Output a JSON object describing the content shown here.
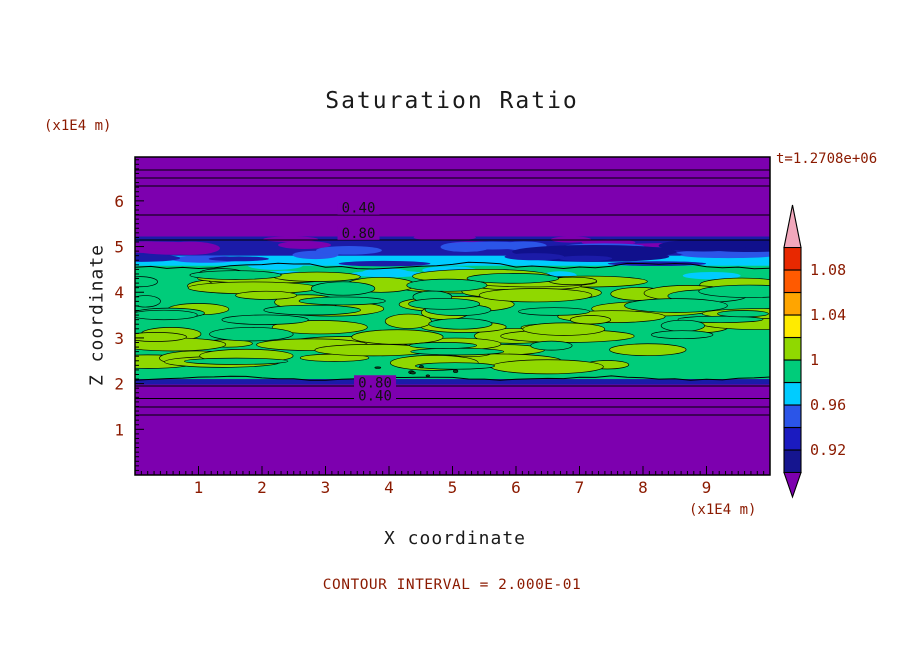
{
  "page": {
    "background": "#FFFFFF"
  },
  "chart_data": {
    "type": "heatmap",
    "title": "Saturation Ratio",
    "xlabel": "X coordinate",
    "ylabel": "Z coordinate",
    "x_axis_unit": "(x1E4 m)",
    "y_axis_unit": "(x1E4 m)",
    "time_label": "t=1.2708e+06",
    "footnote": "CONTOUR INTERVAL = 2.000E-01",
    "xlim": [
      0,
      10
    ],
    "zlim": [
      0,
      6.96
    ],
    "x_ticks": [
      1,
      2,
      3,
      4,
      5,
      6,
      7,
      8,
      9
    ],
    "z_ticks": [
      1,
      2,
      3,
      4,
      5,
      6
    ],
    "colors": {
      "label_accent": "#8B1A00",
      "title_text": "#1A1A1A",
      "contour_line": "#000000",
      "background_field": "#7D00AF"
    },
    "background_color": "#7D00AF",
    "bands": [
      {
        "name": "navy-band",
        "z0": 4.7,
        "z1": 5.22,
        "color": "#1B1BA8"
      },
      {
        "name": "cyan-band",
        "z0": 4.46,
        "z1": 4.8,
        "color": "#00CCFF"
      },
      {
        "name": "bottom-navy-strip",
        "z0": 1.98,
        "z1": 2.12,
        "color": "#1B1BA8"
      },
      {
        "name": "green-band",
        "z0": 2.1,
        "z1": 4.58,
        "color": "#00CC7A"
      }
    ],
    "blob_groups": [
      {
        "name": "purple-wisps-left",
        "color": "#7D00AF",
        "count": 3,
        "z0": 4.75,
        "z1": 5.2,
        "x0": 0,
        "x1": 1.0,
        "rx": [
          25,
          45
        ],
        "ry": [
          4,
          7
        ],
        "stroke": false
      },
      {
        "name": "purple-wisps-top",
        "color": "#7D00AF",
        "count": 8,
        "z0": 5.02,
        "z1": 5.24,
        "rx": [
          20,
          55
        ],
        "ry": [
          2,
          4.5
        ],
        "stroke": false
      },
      {
        "name": "blue-streaks",
        "color": "#2B55E8",
        "count": 10,
        "z0": 4.72,
        "z1": 5.05,
        "rx": [
          20,
          60
        ],
        "ry": [
          2.5,
          5
        ],
        "stroke": false
      },
      {
        "name": "dark-navy-blobs",
        "color": "#10108C",
        "count": 4,
        "z0": 4.75,
        "z1": 5.05,
        "x0": 6.2,
        "x1": 9.7,
        "rx": [
          40,
          90
        ],
        "ry": [
          4,
          8
        ],
        "stroke": false
      },
      {
        "name": "navy-wisps-in-cyan",
        "color": "#1B1BA8",
        "count": 6,
        "z0": 4.6,
        "z1": 4.8,
        "rx": [
          20,
          50
        ],
        "ry": [
          2,
          4
        ],
        "stroke": false
      },
      {
        "name": "cyan-wisps",
        "color": "#00CCFF",
        "count": 10,
        "z0": 4.3,
        "z1": 4.6,
        "rx": [
          12,
          40
        ],
        "ry": [
          2.5,
          5
        ],
        "stroke": false
      },
      {
        "name": "yellow-green-blobs",
        "color": "#90D800",
        "count": 62,
        "z0": 2.3,
        "z1": 4.42,
        "rx": [
          18,
          70
        ],
        "ry": [
          3.5,
          8
        ],
        "stroke": true
      },
      {
        "name": "teal-blobs",
        "color": "#00CC7A",
        "count": 30,
        "z0": 2.3,
        "z1": 4.42,
        "rx": [
          15,
          52
        ],
        "ry": [
          3,
          7
        ],
        "stroke": true
      },
      {
        "name": "dark-specks",
        "color": "#0A4020",
        "count": 6,
        "z0": 2.16,
        "z1": 2.4,
        "x0": 2.8,
        "x1": 5.3,
        "rx": [
          1.5,
          3.5
        ],
        "ry": [
          0.8,
          1.5
        ],
        "stroke": true
      }
    ],
    "hlines_z": [
      6.675,
      6.5,
      6.325,
      5.69,
      5.143,
      1.948,
      1.674,
      1.488,
      1.313
    ],
    "wavy_lines": [
      {
        "z": 4.575,
        "amp": 2.5
      },
      {
        "z": 2.12,
        "amp": 1.5
      }
    ],
    "contour_labels": [
      {
        "text": "0.40",
        "x": 3.52,
        "z": 5.85
      },
      {
        "text": "0.80",
        "x": 3.52,
        "z": 5.3
      },
      {
        "text": "0.80",
        "x": 3.78,
        "z": 2.03
      },
      {
        "text": "0.40",
        "x": 3.78,
        "z": 1.74
      }
    ],
    "seed": 42,
    "colorbar": {
      "under_color": "#7D00AF",
      "over_color": "#F2A8BC",
      "cells": [
        {
          "from": 0.9,
          "to": 0.92,
          "color": "#15158F"
        },
        {
          "from": 0.92,
          "to": 0.94,
          "color": "#1B1BC0"
        },
        {
          "from": 0.94,
          "to": 0.96,
          "color": "#2B55E8"
        },
        {
          "from": 0.96,
          "to": 0.98,
          "color": "#00CCFF"
        },
        {
          "from": 0.98,
          "to": 1.0,
          "color": "#00CC7A"
        },
        {
          "from": 1.0,
          "to": 1.02,
          "color": "#90D800"
        },
        {
          "from": 1.02,
          "to": 1.04,
          "color": "#FFEB00"
        },
        {
          "from": 1.04,
          "to": 1.06,
          "color": "#FFA500"
        },
        {
          "from": 1.06,
          "to": 1.08,
          "color": "#FF5A00"
        },
        {
          "from": 1.08,
          "to": 1.1,
          "color": "#E82800"
        }
      ],
      "labels": [
        {
          "text": "1.08",
          "value": 1.08
        },
        {
          "text": "1.04",
          "value": 1.04
        },
        {
          "text": "1",
          "value": 1.0
        },
        {
          "text": "0.96",
          "value": 0.96
        },
        {
          "text": "0.92",
          "value": 0.92
        }
      ]
    }
  }
}
